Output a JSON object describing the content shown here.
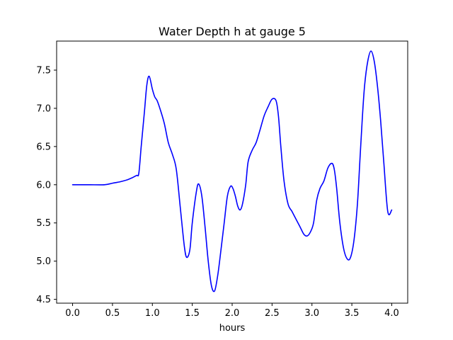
{
  "chart_data": {
    "type": "line",
    "title": "Water Depth h at gauge 5",
    "xlabel": "hours",
    "ylabel": "",
    "xlim": [
      -0.2,
      4.2
    ],
    "ylim": [
      4.45,
      7.88
    ],
    "xticks": [
      0.0,
      0.5,
      1.0,
      1.5,
      2.0,
      2.5,
      3.0,
      3.5,
      4.0
    ],
    "xtick_labels": [
      "0.0",
      "0.5",
      "1.0",
      "1.5",
      "2.0",
      "2.5",
      "3.0",
      "3.5",
      "4.0"
    ],
    "yticks": [
      4.5,
      5.0,
      5.5,
      6.0,
      6.5,
      7.0,
      7.5
    ],
    "ytick_labels": [
      "4.5",
      "5.0",
      "5.5",
      "6.0",
      "6.5",
      "7.0",
      "7.5"
    ],
    "grid": false,
    "series": [
      {
        "color": "#0000ff",
        "x": [
          0.0,
          0.2,
          0.4,
          0.5,
          0.6,
          0.7,
          0.8,
          0.83,
          0.86,
          0.9,
          0.93,
          0.96,
          1.0,
          1.03,
          1.06,
          1.1,
          1.15,
          1.2,
          1.25,
          1.3,
          1.35,
          1.4,
          1.43,
          1.47,
          1.5,
          1.55,
          1.58,
          1.62,
          1.66,
          1.7,
          1.74,
          1.78,
          1.82,
          1.86,
          1.9,
          1.94,
          1.98,
          2.01,
          2.04,
          2.07,
          2.1,
          2.13,
          2.17,
          2.2,
          2.25,
          2.3,
          2.35,
          2.4,
          2.45,
          2.5,
          2.55,
          2.58,
          2.61,
          2.65,
          2.7,
          2.75,
          2.8,
          2.85,
          2.9,
          2.94,
          2.98,
          3.02,
          3.06,
          3.1,
          3.15,
          3.2,
          3.25,
          3.28,
          3.31,
          3.35,
          3.4,
          3.45,
          3.49,
          3.53,
          3.57,
          3.6,
          3.63,
          3.66,
          3.7,
          3.74,
          3.78,
          3.82,
          3.86,
          3.9,
          3.95,
          4.0
        ],
        "y": [
          6.0,
          6.0,
          6.0,
          6.02,
          6.04,
          6.07,
          6.12,
          6.15,
          6.5,
          6.95,
          7.3,
          7.42,
          7.25,
          7.15,
          7.1,
          6.98,
          6.8,
          6.55,
          6.4,
          6.2,
          5.7,
          5.2,
          5.05,
          5.15,
          5.5,
          5.9,
          6.01,
          5.85,
          5.45,
          5.0,
          4.68,
          4.61,
          4.82,
          5.15,
          5.5,
          5.85,
          5.98,
          5.95,
          5.85,
          5.72,
          5.67,
          5.75,
          6.0,
          6.3,
          6.45,
          6.55,
          6.72,
          6.9,
          7.02,
          7.12,
          7.1,
          6.9,
          6.5,
          6.05,
          5.75,
          5.65,
          5.55,
          5.45,
          5.35,
          5.33,
          5.38,
          5.5,
          5.8,
          5.95,
          6.05,
          6.22,
          6.28,
          6.2,
          5.95,
          5.5,
          5.15,
          5.02,
          5.07,
          5.3,
          5.75,
          6.3,
          6.85,
          7.3,
          7.62,
          7.75,
          7.62,
          7.3,
          6.85,
          6.3,
          5.65,
          5.67
        ]
      }
    ]
  }
}
